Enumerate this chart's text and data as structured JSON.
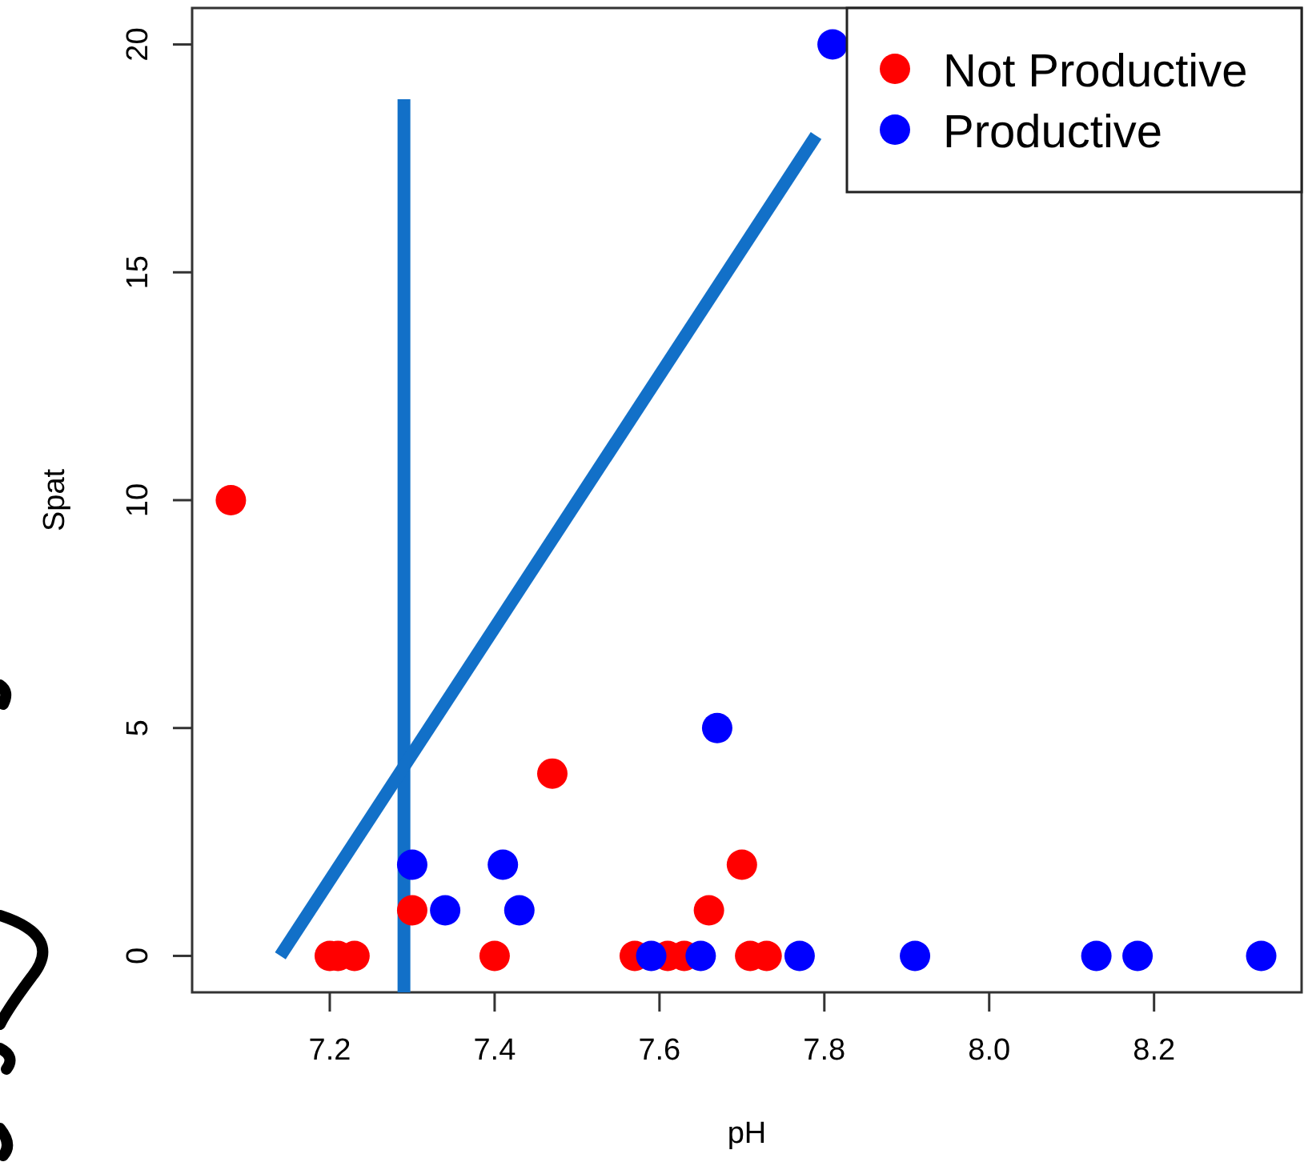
{
  "chart_data": {
    "type": "scatter",
    "xlabel": "pH",
    "ylabel": "Spat",
    "xlim": [
      7.033,
      8.379
    ],
    "ylim": [
      -0.8,
      20.8
    ],
    "xticks": [
      7.2,
      7.4,
      7.6,
      7.8,
      {
        "value": 8.0,
        "label": "8.0"
      },
      8.2
    ],
    "yticks": [
      0,
      5,
      10,
      15,
      20
    ],
    "grid": false,
    "legend": "top right",
    "marker": "circle",
    "series": [
      {
        "name": "Not Productive",
        "color": "#ff0000",
        "x": [
          7.08,
          7.2,
          7.21,
          7.23,
          7.3,
          7.4,
          7.47,
          7.57,
          7.61,
          7.63,
          7.66,
          7.7,
          7.71,
          7.73
        ],
        "values": [
          10,
          0,
          0,
          0,
          1,
          0,
          4,
          0,
          0,
          0,
          1,
          2,
          0,
          0
        ]
      },
      {
        "name": "Productive",
        "color": "#0000ff",
        "x": [
          7.3,
          7.34,
          7.41,
          7.43,
          7.59,
          7.65,
          7.67,
          7.77,
          7.81,
          7.91,
          8.13,
          8.18,
          8.33
        ],
        "values": [
          2,
          1,
          2,
          1,
          0,
          0,
          5,
          0,
          20,
          0,
          0,
          0,
          0
        ]
      },
      {
        "type": "line",
        "color": "#1270c8",
        "marker": "none",
        "x": [
          7.14,
          7.79
        ],
        "values": [
          0,
          18
        ]
      }
    ],
    "ref_lines": [
      {
        "axis": "x",
        "value": 7.29,
        "color": "#1270c8"
      }
    ]
  }
}
